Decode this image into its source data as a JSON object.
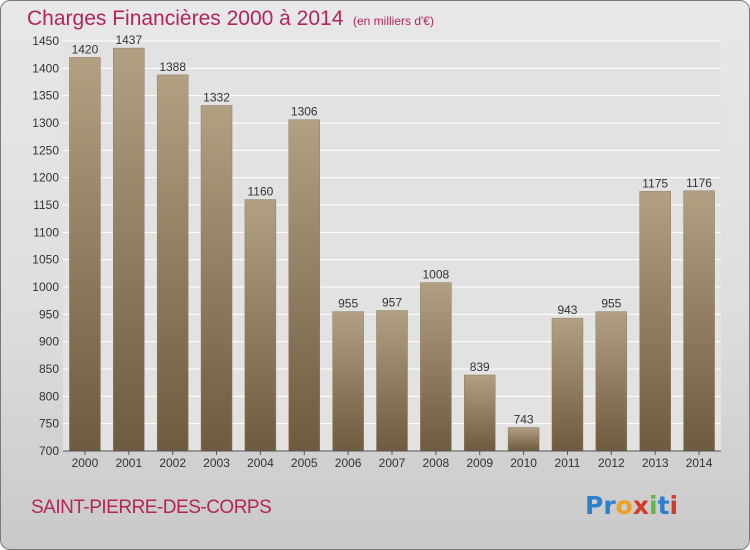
{
  "title": "Charges Financières 2000 à 2014",
  "subtitle": "(en milliers d'€)",
  "commune": "SAINT-PIERRE-DES-CORPS",
  "logo": {
    "text": "Proxiti",
    "parts": [
      "Pr",
      "o",
      "x",
      "i",
      "t",
      "i"
    ]
  },
  "colors": {
    "title": "#b4245a",
    "bar_light": "#b2a083",
    "bar_dark": "#6e5b3f",
    "grid": "#ffffff"
  },
  "chart_data": {
    "type": "bar",
    "categories": [
      "2000",
      "2001",
      "2002",
      "2003",
      "2004",
      "2005",
      "2006",
      "2007",
      "2008",
      "2009",
      "2010",
      "2011",
      "2012",
      "2013",
      "2014"
    ],
    "values": [
      1420,
      1437,
      1388,
      1332,
      1160,
      1306,
      955,
      957,
      1008,
      839,
      743,
      943,
      955,
      1175,
      1176
    ],
    "y_ticks": [
      "700",
      "750",
      "800",
      "850",
      "900",
      "950",
      "1000",
      "1050",
      "1100",
      "1150",
      "1200",
      "1250",
      "1300",
      "1350",
      "1400",
      "1450"
    ],
    "ylim": [
      700,
      1450
    ],
    "grid": true,
    "data_labels": true
  }
}
